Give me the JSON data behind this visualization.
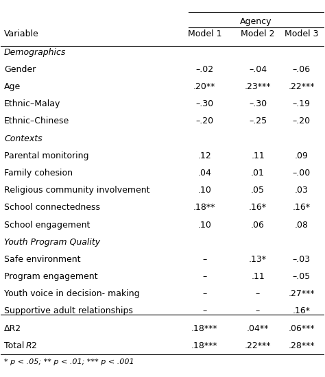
{
  "col_header_top": "Agency",
  "col_headers": [
    "Variable",
    "Model 1",
    "Model 2",
    "Model 3"
  ],
  "rows": [
    {
      "label": "Demographics",
      "italic": true,
      "values": [
        "",
        "",
        ""
      ]
    },
    {
      "label": "Gender",
      "italic": false,
      "values": [
        "–.02",
        "–.04",
        "–.06"
      ]
    },
    {
      "label": "Age",
      "italic": false,
      "values": [
        ".20**",
        ".23***",
        ".22***"
      ]
    },
    {
      "label": "Ethnic–Malay",
      "italic": false,
      "values": [
        "–.30",
        "–.30",
        "–.19"
      ]
    },
    {
      "label": "Ethnic–Chinese",
      "italic": false,
      "values": [
        "–.20",
        "–.25",
        "–.20"
      ]
    },
    {
      "label": "Contexts",
      "italic": true,
      "values": [
        "",
        "",
        ""
      ]
    },
    {
      "label": "Parental monitoring",
      "italic": false,
      "values": [
        ".12",
        ".11",
        ".09"
      ]
    },
    {
      "label": "Family cohesion",
      "italic": false,
      "values": [
        ".04",
        ".01",
        "–.00"
      ]
    },
    {
      "label": "Religious community involvement",
      "italic": false,
      "values": [
        ".10",
        ".05",
        ".03"
      ]
    },
    {
      "label": "School connectedness",
      "italic": false,
      "values": [
        ".18**",
        ".16*",
        ".16*"
      ]
    },
    {
      "label": "School engagement",
      "italic": false,
      "values": [
        ".10",
        ".06",
        ".08"
      ]
    },
    {
      "label": "Youth Program Quality",
      "italic": true,
      "values": [
        "",
        "",
        ""
      ]
    },
    {
      "label": "Safe environment",
      "italic": false,
      "values": [
        "–",
        ".13*",
        "–.03"
      ]
    },
    {
      "label": "Program engagement",
      "italic": false,
      "values": [
        "–",
        ".11",
        "–.05"
      ]
    },
    {
      "label": "Youth voice in decision- making",
      "italic": false,
      "values": [
        "–",
        "–",
        ".27***"
      ]
    },
    {
      "label": "Supportive adult relationships",
      "italic": false,
      "values": [
        "–",
        "–",
        ".16*"
      ]
    },
    {
      "label": "ΔR2",
      "italic": false,
      "values": [
        ".18***",
        ".04**",
        ".06***"
      ]
    },
    {
      "label": "Total R2",
      "italic": false,
      "values": [
        ".18***",
        ".22***",
        ".28***"
      ]
    }
  ],
  "footer": "* p < .05; ** p < .01; *** p < .001",
  "bg_color": "#ffffff",
  "text_color": "#000000",
  "line_color": "#000000"
}
